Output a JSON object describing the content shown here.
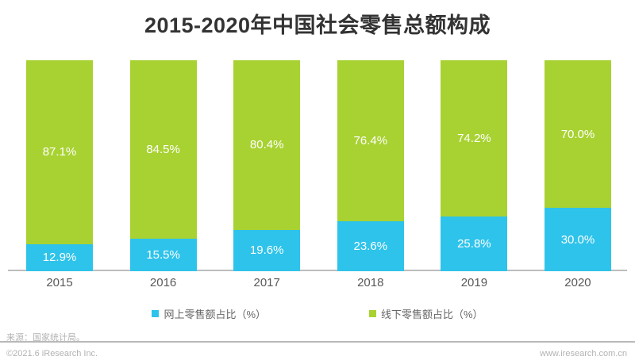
{
  "title": "2015-2020年中国社会零售总额构成",
  "chart_data": {
    "type": "bar",
    "stacked": true,
    "title": "2015-2020年中国社会零售总额构成",
    "categories": [
      "2015",
      "2016",
      "2017",
      "2018",
      "2019",
      "2020"
    ],
    "series": [
      {
        "name": "网上零售额占比（%）",
        "color": "#2ec3ea",
        "values": [
          12.9,
          15.5,
          19.6,
          23.6,
          25.8,
          30.0
        ]
      },
      {
        "name": "线下零售额占比（%）",
        "color": "#a8d232",
        "values": [
          87.1,
          84.5,
          80.4,
          76.4,
          74.2,
          70.0
        ]
      }
    ],
    "xlabel": "",
    "ylabel": "",
    "ylim": [
      0,
      100
    ],
    "grid": false,
    "legend_position": "bottom",
    "value_label_format": "{value}%"
  },
  "footer": {
    "source": "来源：国家统计局。",
    "copyright": "©2021.6 iResearch Inc.",
    "website": "www.iresearch.com.cn"
  }
}
